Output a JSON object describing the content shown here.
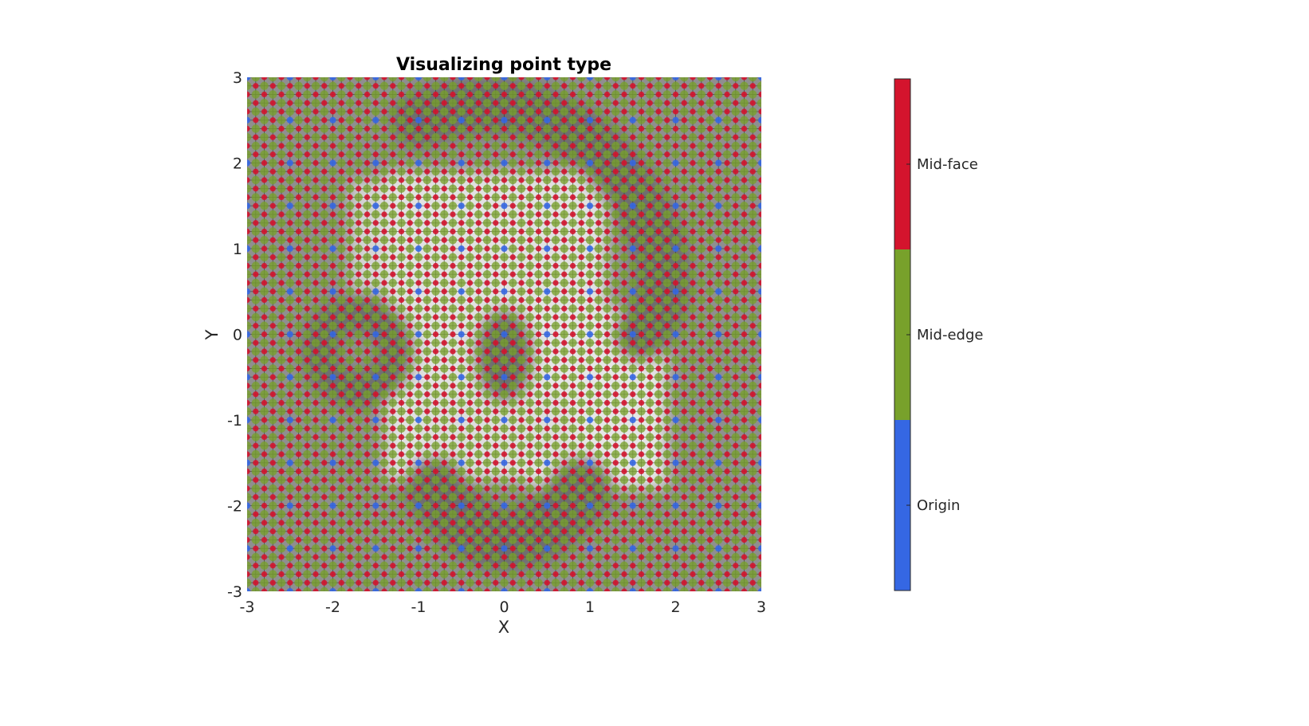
{
  "chart_data": {
    "type": "scatter",
    "title": "Visualizing point type",
    "xlabel": "X",
    "ylabel": "Y",
    "xlim": [
      -3,
      3
    ],
    "ylim": [
      -3,
      3
    ],
    "x_ticks": [
      -3,
      -2,
      -1,
      0,
      1,
      2,
      3
    ],
    "y_ticks": [
      -3,
      -2,
      -1,
      0,
      1,
      2,
      3
    ],
    "x_tick_labels": [
      "-3",
      "-2",
      "-1",
      "0",
      "1",
      "2",
      "3"
    ],
    "y_tick_labels": [
      "-3",
      "-2",
      "-1",
      "0",
      "1",
      "2",
      "3"
    ],
    "grid_step": 0.1,
    "background": "grayscale image with dark gray shapes (a loop at top-right, a ring at left, a shape in the centre and an arc at the bottom) on a light background",
    "categories": [
      "Origin",
      "Mid-edge",
      "Mid-face"
    ],
    "category_colors": {
      "Origin": "#3567e3",
      "Mid-edge": "#78a12b",
      "Mid-face": "#d4142d"
    },
    "colorbar": {
      "ticks": [
        "Origin",
        "Mid-edge",
        "Mid-face"
      ],
      "colors": [
        "#3567e3",
        "#78a12b",
        "#d4142d"
      ]
    },
    "grid": false,
    "legend": "colorbar-right"
  }
}
